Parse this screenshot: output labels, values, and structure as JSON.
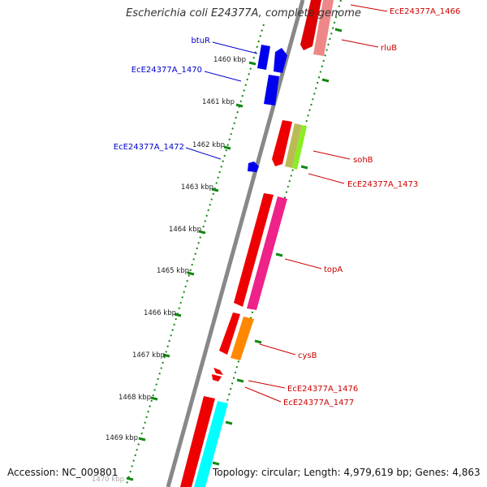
{
  "title": "Escherichia coli E24377A, complete genome",
  "footer": {
    "accession": "Accession: NC_009801",
    "summary": "Topology: circular; Length: 4,979,619 bp; Genes: 4,863"
  },
  "colors": {
    "forward_label": "#0000cc",
    "reverse_label": "#cc0000",
    "backbone": "#888888",
    "tick": "#118811"
  },
  "ticks": [
    "1460 kbp",
    "1461 kbp",
    "1462 kbp",
    "1463 kbp",
    "1464 kbp",
    "1465 kbp",
    "1466 kbp",
    "1467 kbp",
    "1468 kbp",
    "1469 kbp",
    "1470 kbp"
  ],
  "forward_genes": [
    "btuR",
    "EcE24377A_1470",
    "EcE24377A_1472"
  ],
  "reverse_genes": [
    "EcE24377A_1466",
    "rluB",
    "sohB",
    "EcE24377A_1473",
    "topA",
    "cysB",
    "EcE24377A_1476",
    "EcE24377A_1477"
  ]
}
